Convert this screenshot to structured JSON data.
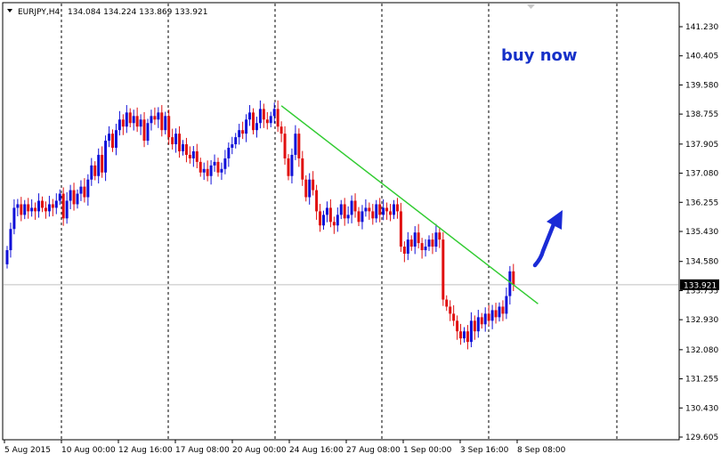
{
  "header": {
    "symbol": "EURJPY,H4",
    "ohlc": "134.084 134.224 133.869 133.921"
  },
  "annotation": {
    "text": "buy now"
  },
  "colors": {
    "bull": "#1010d8",
    "bear": "#e01010",
    "trendline": "#33cc33",
    "arrow": "#1a2bd6",
    "annotation": "#1530c8",
    "grid": "#000000"
  },
  "chart_data": {
    "type": "candlestick",
    "title": "",
    "ylim": [
      129.3,
      141.6
    ],
    "y_ticks": [
      "141.230",
      "140.405",
      "139.580",
      "138.755",
      "137.905",
      "137.080",
      "136.255",
      "135.430",
      "134.580",
      "133.755",
      "132.930",
      "132.080",
      "131.255",
      "130.430",
      "129.605"
    ],
    "x_labels": [
      "5 Aug 2015",
      "10 Aug 00:00",
      "12 Aug 16:00",
      "17 Aug 08:00",
      "20 Aug 00:00",
      "24 Aug 16:00",
      "27 Aug 08:00",
      "1 Sep 00:00",
      "3 Sep 16:00",
      "8 Sep 08:00"
    ],
    "current_price": "133.921",
    "grid": "vertical dashed",
    "series": [
      {
        "closes": [
          134.9,
          135.5,
          136.1,
          136.2,
          135.9,
          136.2,
          136.0,
          136.1,
          136.0,
          136.3,
          136.1,
          136.0,
          136.2,
          136.1,
          136.3,
          136.5,
          135.8,
          136.3,
          136.6,
          136.2,
          136.5,
          136.7,
          136.4,
          136.9,
          137.3,
          137.0,
          137.6,
          137.1,
          138.0,
          138.2,
          137.8,
          138.3,
          138.6,
          138.4,
          138.8,
          138.5,
          138.7,
          138.4,
          138.6,
          138.0,
          138.5,
          138.7,
          138.6,
          138.8,
          138.3,
          138.7,
          138.1,
          137.9,
          138.2,
          137.7,
          137.9,
          137.6,
          137.5,
          137.7,
          137.4,
          137.1,
          137.2,
          137.0,
          137.3,
          137.4,
          137.1,
          137.2,
          137.5,
          137.8,
          137.9,
          138.1,
          138.3,
          138.2,
          138.6,
          138.8,
          138.3,
          138.5,
          138.9,
          138.6,
          138.5,
          138.7,
          138.9,
          138.4,
          138.2,
          137.5,
          137.0,
          137.6,
          138.2,
          137.5,
          136.9,
          136.4,
          136.9,
          136.6,
          136.0,
          135.6,
          135.9,
          136.1,
          135.7,
          135.6,
          135.9,
          136.2,
          135.8,
          135.9,
          136.3,
          136.0,
          135.7,
          136.0,
          136.1,
          136.0,
          135.8,
          136.2,
          135.9,
          136.1,
          136.0,
          135.9,
          136.2,
          136.0,
          135.0,
          134.8,
          135.2,
          135.0,
          135.4,
          135.1,
          134.9,
          135.0,
          135.2,
          135.0,
          135.4,
          135.2,
          133.5,
          133.3,
          133.1,
          132.9,
          132.6,
          132.4,
          132.6,
          132.3,
          132.9,
          132.6,
          133.0,
          132.8,
          133.1,
          132.9,
          133.2,
          133.0,
          133.3,
          133.1,
          133.6,
          134.3,
          133.921
        ]
      }
    ],
    "trendline": [
      [
        78,
        138.99
      ],
      [
        151,
        133.38
      ]
    ]
  }
}
